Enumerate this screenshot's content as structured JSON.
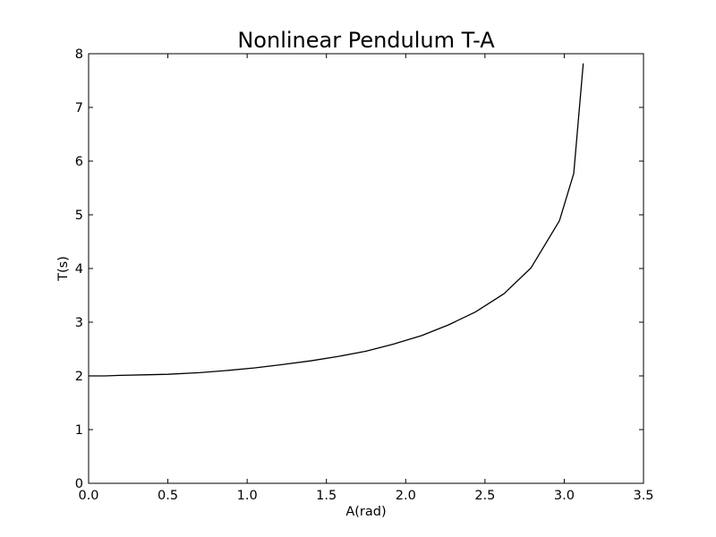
{
  "chart_data": {
    "type": "line",
    "title": "Nonlinear Pendulum T-A",
    "xlabel": "A(rad)",
    "ylabel": "T(s)",
    "xlim": [
      0.0,
      3.5
    ],
    "ylim": [
      0,
      8
    ],
    "xticks": [
      "0.0",
      "0.5",
      "1.0",
      "1.5",
      "2.0",
      "2.5",
      "3.0",
      "3.5"
    ],
    "yticks": [
      "0",
      "1",
      "2",
      "3",
      "4",
      "5",
      "6",
      "7",
      "8"
    ],
    "grid": false,
    "line_color": "#000000",
    "series": [
      {
        "x": [
          0.0,
          0.1,
          0.2,
          0.35,
          0.5,
          0.7,
          0.87,
          1.05,
          1.22,
          1.4,
          1.57,
          1.75,
          1.92,
          2.1,
          2.27,
          2.44,
          2.62,
          2.79,
          2.97,
          3.06,
          3.12
        ],
        "values": [
          2.0,
          2.0,
          2.01,
          2.02,
          2.03,
          2.06,
          2.1,
          2.15,
          2.21,
          2.28,
          2.36,
          2.46,
          2.59,
          2.75,
          2.95,
          3.19,
          3.53,
          4.01,
          4.89,
          5.77,
          7.82
        ]
      }
    ]
  }
}
